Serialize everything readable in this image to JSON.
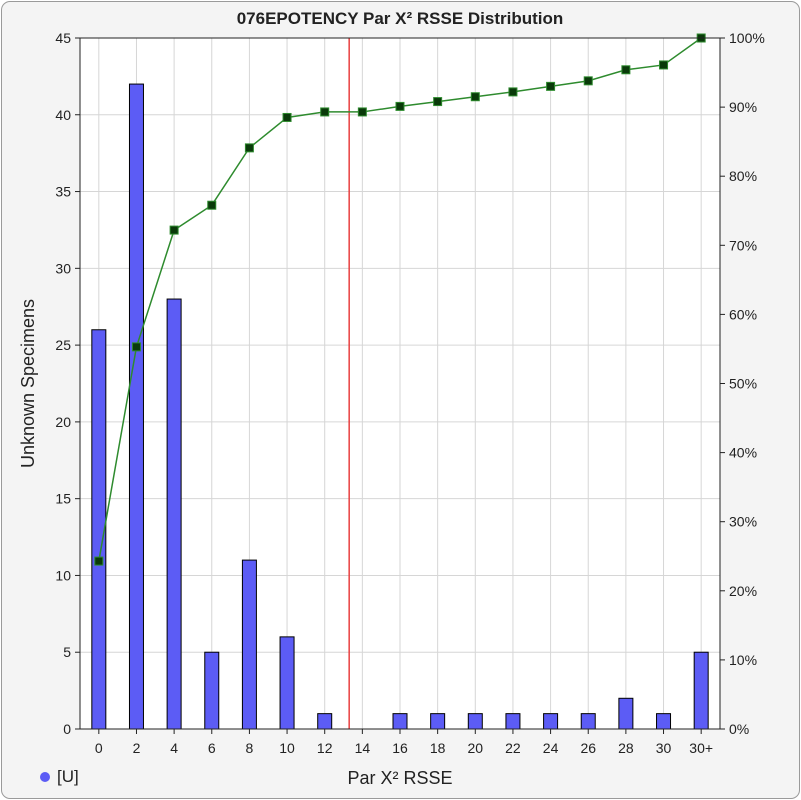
{
  "chart_data": {
    "type": "bar",
    "title": "076EPOTENCY Par X² RSSE Distribution",
    "xlabel": "Par X² RSSE",
    "ylabel": "Unknown Specimens",
    "categories": [
      "0",
      "2",
      "4",
      "6",
      "8",
      "10",
      "12",
      "14",
      "16",
      "18",
      "20",
      "22",
      "24",
      "26",
      "28",
      "30",
      "30+"
    ],
    "series": [
      {
        "name": "[U]",
        "type": "bar",
        "axis": "left",
        "values": [
          26,
          42,
          28,
          5,
          11,
          6,
          1,
          0,
          1,
          1,
          1,
          1,
          1,
          1,
          2,
          1,
          5
        ],
        "color": "#5c5cf5"
      },
      {
        "type": "line",
        "axis": "right",
        "values": [
          24.3,
          55.3,
          72.2,
          75.8,
          84.1,
          88.5,
          89.3,
          89.3,
          90.1,
          90.8,
          91.5,
          92.2,
          93.0,
          93.8,
          95.4,
          96.1,
          100
        ],
        "color": "#2e8b2e",
        "marker_color": "#0a3a0a"
      }
    ],
    "ylim": [
      0,
      45
    ],
    "y_ticks": [
      "0",
      "5",
      "10",
      "15",
      "20",
      "25",
      "30",
      "35",
      "40",
      "45"
    ],
    "y2lim": [
      0,
      100
    ],
    "y2_ticks": [
      "0%",
      "10%",
      "20%",
      "30%",
      "40%",
      "50%",
      "60%",
      "70%",
      "80%",
      "90%",
      "100%"
    ],
    "reference_line": {
      "x": 13.3,
      "color": "#e84040"
    },
    "grid": true,
    "legend": {
      "position": "bottom-left",
      "entries": [
        "[U]"
      ]
    }
  }
}
